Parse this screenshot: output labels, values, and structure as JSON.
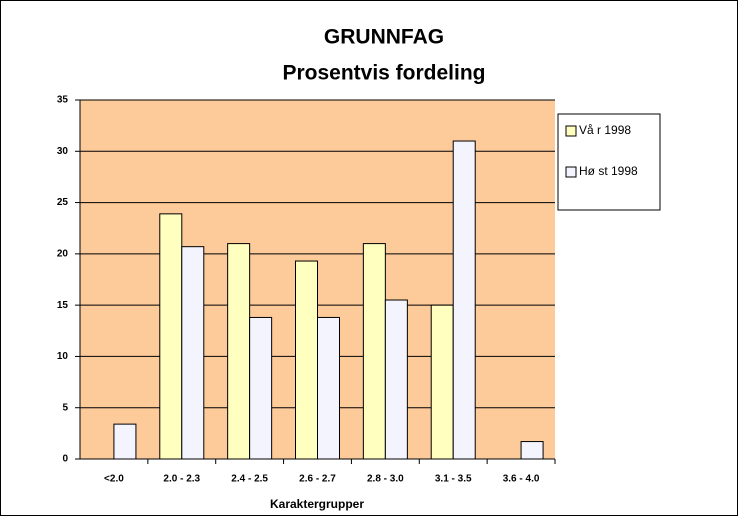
{
  "chart_data": {
    "type": "bar",
    "title": "GRUNNFAG",
    "subtitle": "Prosentvis fordeling",
    "x_label": "Karaktergrupper",
    "categories": [
      "<2.0",
      "2.0 - 2.3",
      "2.4 - 2.5",
      "2.6 - 2.7",
      "2.8 - 3.0",
      "3.1 - 3.5",
      "3.6 - 4.0"
    ],
    "series": [
      {
        "name": "Vå r 1998",
        "color": "#ffffc0",
        "values": [
          0,
          23.9,
          21,
          19.3,
          21,
          15,
          0
        ]
      },
      {
        "name": "Hø st 1998",
        "color": "#f4f4ff",
        "values": [
          3.4,
          20.7,
          13.8,
          13.8,
          15.5,
          31,
          1.7
        ]
      }
    ],
    "ylim": [
      0,
      35
    ],
    "yticks": [
      0,
      5,
      10,
      15,
      20,
      25,
      30,
      35
    ],
    "grid": true,
    "plot_background": "#fdca9a",
    "legend": "right"
  }
}
